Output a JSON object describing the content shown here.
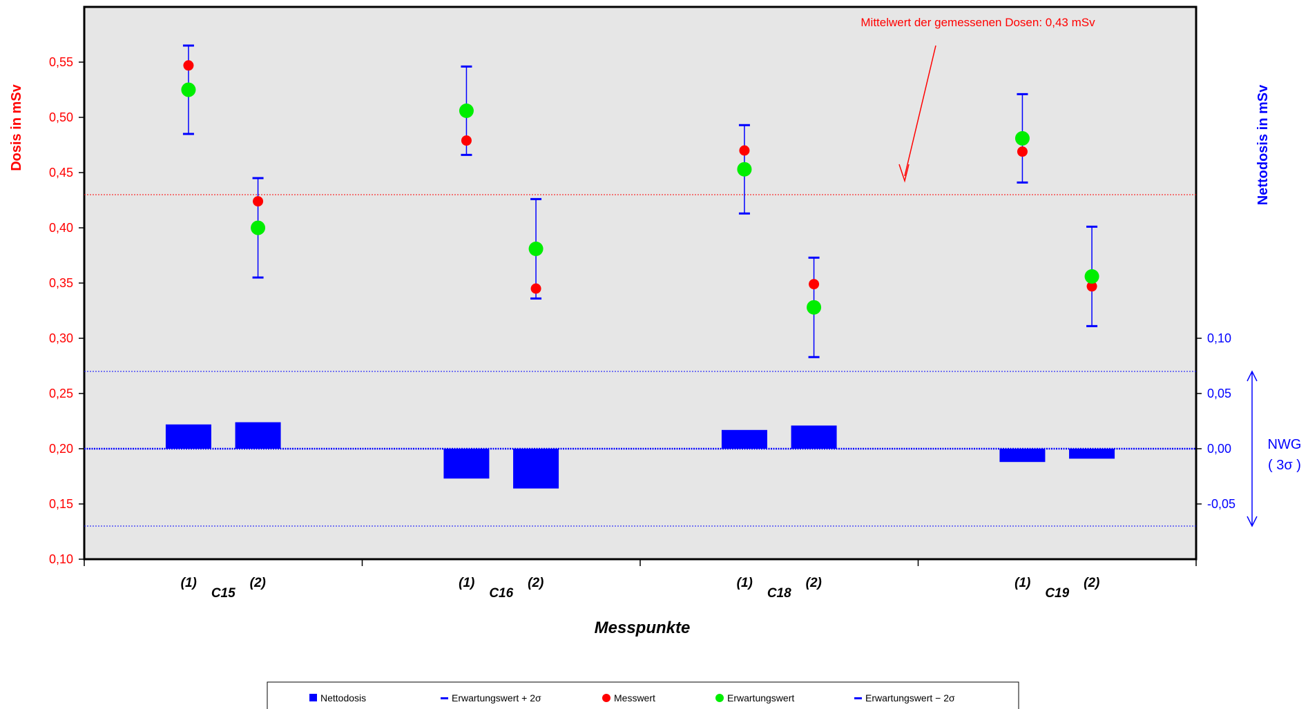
{
  "chart_data": {
    "type": "scatter",
    "annotation": "Mittelwert der gemessenen Dosen: 0,43 mSv",
    "mean_line_value": 0.43,
    "ylabel_left": "Dosis in mSv",
    "ylabel_right": "Nettodosis in mSv",
    "xlabel": "Messpunkte",
    "ylim_left": [
      0.1,
      0.6
    ],
    "yticks_left": [
      "0,10",
      "0,15",
      "0,20",
      "0,25",
      "0,30",
      "0,35",
      "0,40",
      "0,45",
      "0,50",
      "0,55"
    ],
    "yticks_right": [
      "-0,05",
      "0,00",
      "0,05",
      "0,10"
    ],
    "nwg_label": "NWG",
    "nwg_sigma": "( 3σ )",
    "nwg_bounds_netto": [
      -0.07,
      0.07
    ],
    "groups": [
      {
        "name": "C15",
        "sub": [
          "(1)",
          "(2)"
        ]
      },
      {
        "name": "C16",
        "sub": [
          "(1)",
          "(2)"
        ]
      },
      {
        "name": "C18",
        "sub": [
          "(1)",
          "(2)"
        ]
      },
      {
        "name": "C19",
        "sub": [
          "(1)",
          "(2)"
        ]
      }
    ],
    "points": [
      {
        "messwert": 0.547,
        "erwartungswert": 0.525,
        "plus2s": 0.565,
        "minus2s": 0.485,
        "nettodosis": 0.022
      },
      {
        "messwert": 0.424,
        "erwartungswert": 0.4,
        "plus2s": 0.445,
        "minus2s": 0.355,
        "nettodosis": 0.024
      },
      {
        "messwert": 0.479,
        "erwartungswert": 0.506,
        "plus2s": 0.546,
        "minus2s": 0.466,
        "nettodosis": -0.027
      },
      {
        "messwert": 0.345,
        "erwartungswert": 0.381,
        "plus2s": 0.426,
        "minus2s": 0.336,
        "nettodosis": -0.036
      },
      {
        "messwert": 0.47,
        "erwartungswert": 0.453,
        "plus2s": 0.493,
        "minus2s": 0.413,
        "nettodosis": 0.017
      },
      {
        "messwert": 0.349,
        "erwartungswert": 0.328,
        "plus2s": 0.373,
        "minus2s": 0.283,
        "nettodosis": 0.021
      },
      {
        "messwert": 0.469,
        "erwartungswert": 0.481,
        "plus2s": 0.521,
        "minus2s": 0.441,
        "nettodosis": -0.012
      },
      {
        "messwert": 0.347,
        "erwartungswert": 0.356,
        "plus2s": 0.401,
        "minus2s": 0.311,
        "nettodosis": -0.009
      }
    ],
    "legend": [
      {
        "label": "Nettodosis",
        "marker": "square",
        "color": "#0000ff"
      },
      {
        "label": "Erwartungswert + 2σ",
        "marker": "dash",
        "color": "#0000ff"
      },
      {
        "label": "Messwert",
        "marker": "dot",
        "color": "#ff0000"
      },
      {
        "label": "Erwartungswert",
        "marker": "dot",
        "color": "#00ee00"
      },
      {
        "label": "Erwartungswert − 2σ",
        "marker": "dash",
        "color": "#0000ff"
      }
    ],
    "colors": {
      "plot_bg": "#e6e6e6",
      "messwert": "#ff0000",
      "erwartungswert": "#00ee00",
      "netto": "#0000ff",
      "left_axis": "#ff0000",
      "right_axis": "#0000ff"
    },
    "grid": false,
    "legend_position": "bottom"
  }
}
